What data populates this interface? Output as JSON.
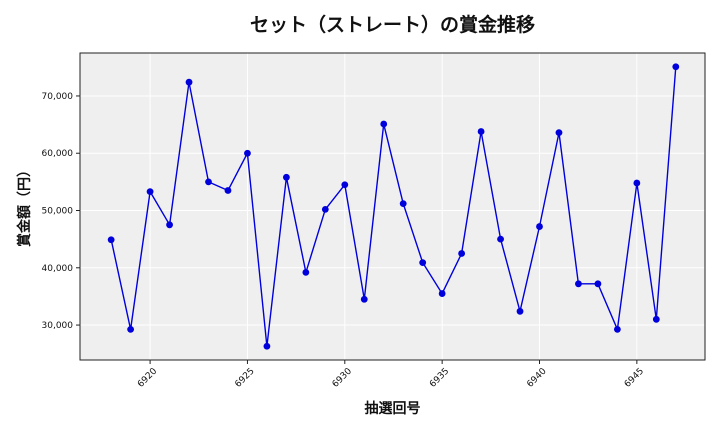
{
  "chart_data": {
    "type": "line",
    "title": "セット（ストレート）の賞金推移",
    "xlabel": "抽選回号",
    "ylabel": "賞金額（円）",
    "x": [
      6918,
      6919,
      6920,
      6921,
      6922,
      6923,
      6924,
      6925,
      6926,
      6927,
      6928,
      6929,
      6930,
      6931,
      6932,
      6933,
      6934,
      6935,
      6936,
      6937,
      6938,
      6939,
      6940,
      6941,
      6942,
      6943,
      6944,
      6945,
      6946,
      6947
    ],
    "series": [
      {
        "name": "賞金額",
        "color": "#0000dd",
        "marker": "circle",
        "values": [
          44900,
          29250,
          53300,
          47500,
          72400,
          55000,
          53500,
          60000,
          26300,
          55800,
          39200,
          50200,
          54500,
          34500,
          65100,
          51200,
          40900,
          35500,
          42500,
          63800,
          45000,
          32400,
          47200,
          63600,
          37200,
          37200,
          29250,
          54800,
          31000,
          75100
        ]
      }
    ],
    "xticks": [
      6920,
      6925,
      6930,
      6935,
      6940,
      6945
    ],
    "xtick_labels": [
      "6920",
      "6925",
      "6930",
      "6935",
      "6940",
      "6945"
    ],
    "yticks": [
      30000,
      40000,
      50000,
      60000,
      70000
    ],
    "ytick_labels": [
      "30,000",
      "40,000",
      "50,000",
      "60,000",
      "70,000"
    ],
    "xlim": [
      6916.4,
      6948.5
    ],
    "ylim": [
      23900,
      77500
    ],
    "grid": true,
    "legend": null,
    "background": "#efefef"
  }
}
